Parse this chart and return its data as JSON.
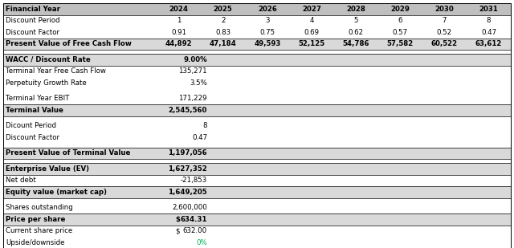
{
  "years": [
    "2024",
    "2025",
    "2026",
    "2027",
    "2028",
    "2029",
    "2030",
    "2031"
  ],
  "discount_period": [
    "1",
    "2",
    "3",
    "4",
    "5",
    "6",
    "7",
    "8"
  ],
  "discount_factor": [
    "0.91",
    "0.83",
    "0.75",
    "0.69",
    "0.62",
    "0.57",
    "0.52",
    "0.47"
  ],
  "pv_fcf": [
    "44,892",
    "47,184",
    "49,593",
    "52,125",
    "54,786",
    "57,582",
    "60,522",
    "63,612"
  ],
  "wacc": "9.00%",
  "terminal_year_fcf": "135,271",
  "perpetuity_growth_rate": "3.5%",
  "terminal_year_ebit": "171,229",
  "terminal_value": "2,545,560",
  "dicount_period": "8",
  "discount_factor_terminal": "0.47",
  "pv_terminal_value": "1,197,056",
  "enterprise_value": "1,627,352",
  "net_debt": "-21,853",
  "equity_value": "1,649,205",
  "shares_outstanding": "2,600,000",
  "price_per_share": "634.31",
  "current_share_price": "632.00",
  "upside_downside": "0%",
  "bg_color": "#ffffff",
  "header_bg": "#bfbfbf",
  "bold_row_bg": "#d9d9d9",
  "green_color": "#00b050"
}
